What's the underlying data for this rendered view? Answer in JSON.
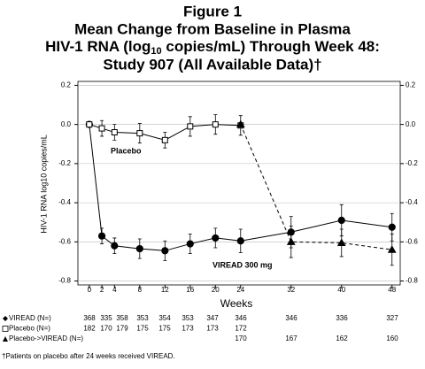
{
  "chart_data": {
    "type": "line",
    "title": "Figure 1",
    "subtitle_lines": [
      "Mean Change from Baseline in Plasma",
      "Study 907 (All Available Data)†"
    ],
    "subtitle_line_units": [
      "HIV-1 RNA (log",
      "10",
      " copies/mL) Through Week 48:"
    ],
    "y_label": "HIV-1 RNA log10 copies/mL",
    "x_label": "Weeks",
    "x": [
      0,
      2,
      4,
      8,
      12,
      16,
      20,
      24,
      32,
      40,
      48
    ],
    "xlim": [
      -1.8,
      49.3
    ],
    "ylim": [
      -0.82,
      0.22
    ],
    "yticks": [
      0.2,
      {
        "value": 0,
        "label": "0.0"
      },
      -0.2,
      -0.4,
      -0.6,
      -0.8
    ],
    "grid": true,
    "series": [
      {
        "name": "VIREAD (N=)",
        "color": "#000000",
        "marker": "circle",
        "dashed": false,
        "values": [
          0,
          -0.57,
          -0.62,
          -0.635,
          -0.645,
          -0.61,
          -0.58,
          -0.595,
          -0.55,
          -0.49,
          -0.525
        ],
        "errors": [
          null,
          0.04,
          0.04,
          0.05,
          0.05,
          0.05,
          0.05,
          0.06,
          0.08,
          0.08,
          0.07
        ],
        "n": [
          368,
          335,
          358,
          353,
          354,
          353,
          347,
          346,
          346,
          336,
          327
        ]
      },
      {
        "name": "Placebo (N=)",
        "color": "#000000",
        "marker": "square",
        "dashed": false,
        "values": [
          0,
          -0.02,
          -0.04,
          -0.045,
          -0.08,
          -0.01,
          0.0,
          -0.005,
          null,
          null,
          null
        ],
        "errors": [
          null,
          0.04,
          0.04,
          0.05,
          0.04,
          0.05,
          0.05,
          0.05,
          null,
          null,
          null
        ],
        "n": [
          182,
          170,
          179,
          175,
          175,
          173,
          173,
          172,
          null,
          null,
          null
        ]
      },
      {
        "name": "Placebo->VIREAD (N=)",
        "color": "#000000",
        "marker": "triangle",
        "dashed": true,
        "values": [
          null,
          null,
          null,
          null,
          null,
          null,
          null,
          0.0,
          -0.6,
          -0.605,
          -0.64
        ],
        "errors": [
          null,
          null,
          null,
          null,
          null,
          null,
          null,
          null,
          0.08,
          0.07,
          0.08
        ],
        "n": [
          null,
          null,
          null,
          null,
          null,
          null,
          null,
          170,
          167,
          162,
          160
        ]
      }
    ],
    "annotations": [
      "Placebo",
      "VIREAD 300 mg"
    ],
    "footnote": "†Patients on placebo after 24 weeks received VIREAD."
  }
}
